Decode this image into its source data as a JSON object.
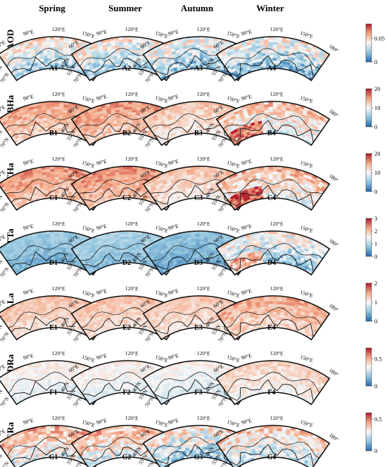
{
  "seasons": [
    "Spring",
    "Summer",
    "Autumn",
    "Winter"
  ],
  "lat_labels": [
    "40°N",
    "55°N",
    "70°N"
  ],
  "lon_labels": [
    "60°E",
    "90°E",
    "120°E",
    "150°E",
    "180°"
  ],
  "rows": [
    {
      "label": "TAOD",
      "panel_ids": [
        "A1",
        "A2",
        "A3",
        "A4"
      ],
      "colorbar_ticks": [
        "0",
        "0.05"
      ],
      "colorbar_max": 0.08,
      "panel_levels": [
        0.45,
        0.45,
        0.42,
        0.4
      ],
      "panel_spread": [
        0.35,
        0.35,
        0.38,
        0.4
      ]
    },
    {
      "label": "TBHa",
      "panel_ids": [
        "B1",
        "B2",
        "B3",
        "B4"
      ],
      "colorbar_ticks": [
        "0",
        "10",
        "20"
      ],
      "colorbar_max": 20,
      "panel_levels": [
        0.68,
        0.7,
        0.6,
        0.55
      ],
      "panel_spread": [
        0.2,
        0.2,
        0.18,
        0.32
      ]
    },
    {
      "label": "THa",
      "panel_ids": [
        "C1",
        "C2",
        "C3",
        "C4"
      ],
      "colorbar_ticks": [
        "0",
        "10",
        "20"
      ],
      "colorbar_max": 20,
      "panel_levels": [
        0.7,
        0.72,
        0.6,
        0.58
      ],
      "panel_spread": [
        0.2,
        0.2,
        0.18,
        0.32
      ]
    },
    {
      "label": "TTa",
      "panel_ids": [
        "D1",
        "D2",
        "D3",
        "D4"
      ],
      "colorbar_ticks": [
        "0",
        "1",
        "2",
        "3"
      ],
      "colorbar_max": 3,
      "panel_levels": [
        0.25,
        0.28,
        0.22,
        0.42
      ],
      "panel_spread": [
        0.12,
        0.12,
        0.12,
        0.35
      ]
    },
    {
      "label": "LLa",
      "panel_ids": [
        "E1",
        "E2",
        "E3",
        "E4"
      ],
      "colorbar_ticks": [
        "0",
        "1",
        "2"
      ],
      "colorbar_max": 2,
      "panel_levels": [
        0.62,
        0.62,
        0.6,
        0.66
      ],
      "panel_spread": [
        0.14,
        0.14,
        0.14,
        0.2
      ]
    },
    {
      "label": "TDRa",
      "panel_ids": [
        "F1",
        "F2",
        "F3",
        "F4"
      ],
      "colorbar_ticks": [
        "0",
        "0.5"
      ],
      "colorbar_max": 0.7,
      "panel_levels": [
        0.5,
        0.5,
        0.48,
        0.56
      ],
      "panel_spread": [
        0.12,
        0.12,
        0.12,
        0.16
      ]
    },
    {
      "label": "CRa",
      "panel_ids": [
        "G1",
        "G2",
        "G3",
        "G4"
      ],
      "colorbar_ticks": [
        "0",
        "0.5"
      ],
      "colorbar_max": 0.6,
      "panel_levels": [
        0.58,
        0.58,
        0.45,
        0.52
      ],
      "panel_spread": [
        0.35,
        0.35,
        0.4,
        0.35
      ]
    }
  ],
  "colors": {
    "low": "#2166ac",
    "mid": "#f7f7f7",
    "high": "#b2182b",
    "frame": "#111111"
  }
}
